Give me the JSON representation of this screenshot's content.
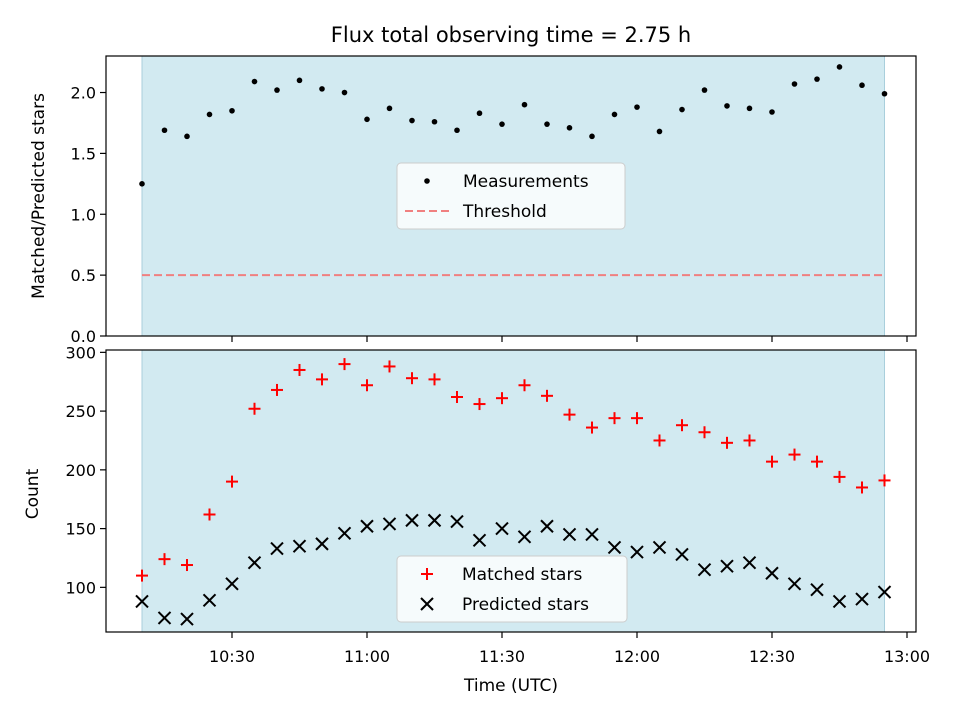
{
  "chart_data": [
    {
      "type": "scatter",
      "title": "Flux total observing time = 2.75 h",
      "ylabel": "Matched/Predicted stars",
      "xlabel": "",
      "ylim": [
        0,
        2.3
      ],
      "yticks": [
        0.0,
        0.5,
        1.0,
        1.5,
        2.0
      ],
      "ytick_labels": [
        "0.0",
        "0.5",
        "1.0",
        "1.5",
        "2.0"
      ],
      "shaded_interval": [
        "10:10",
        "12:55"
      ],
      "shade_color": "#add8e6",
      "legend_position": "center",
      "series": [
        {
          "name": "Measurements",
          "marker": "dot",
          "color": "#000000",
          "x": [
            "10:10",
            "10:15",
            "10:20",
            "10:25",
            "10:30",
            "10:35",
            "10:40",
            "10:45",
            "10:50",
            "10:55",
            "11:00",
            "11:05",
            "11:10",
            "11:15",
            "11:20",
            "11:25",
            "11:30",
            "11:35",
            "11:40",
            "11:45",
            "11:50",
            "11:55",
            "12:00",
            "12:05",
            "12:10",
            "12:15",
            "12:20",
            "12:25",
            "12:30",
            "12:35",
            "12:40",
            "12:45",
            "12:50",
            "12:55"
          ],
          "y": [
            1.25,
            1.69,
            1.64,
            1.82,
            1.85,
            2.09,
            2.02,
            2.1,
            2.03,
            2.0,
            1.78,
            1.87,
            1.77,
            1.76,
            1.69,
            1.83,
            1.74,
            1.9,
            1.74,
            1.71,
            1.64,
            1.82,
            1.88,
            1.68,
            1.86,
            2.02,
            1.89,
            1.87,
            1.84,
            2.07,
            2.11,
            2.21,
            2.06,
            1.99
          ]
        },
        {
          "name": "Threshold",
          "line_style": "dashed",
          "color": "#f08080",
          "x": [
            "10:10",
            "12:55"
          ],
          "y": [
            0.5,
            0.5
          ]
        }
      ]
    },
    {
      "type": "scatter",
      "title": "",
      "ylabel": "Count",
      "xlabel": "Time (UTC)",
      "ylim": [
        62,
        302
      ],
      "yticks": [
        100,
        150,
        200,
        250,
        300
      ],
      "ytick_labels": [
        "100",
        "150",
        "200",
        "250",
        "300"
      ],
      "x_range": [
        "10:02",
        "13:02"
      ],
      "xticks": [
        "10:30",
        "11:00",
        "11:30",
        "12:00",
        "12:30",
        "13:00"
      ],
      "shaded_interval": [
        "10:10",
        "12:55"
      ],
      "shade_color": "#add8e6",
      "legend_position": "lower center",
      "series": [
        {
          "name": "Matched stars",
          "marker": "plus",
          "color": "#ff0000",
          "x": [
            "10:10",
            "10:15",
            "10:20",
            "10:25",
            "10:30",
            "10:35",
            "10:40",
            "10:45",
            "10:50",
            "10:55",
            "11:00",
            "11:05",
            "11:10",
            "11:15",
            "11:20",
            "11:25",
            "11:30",
            "11:35",
            "11:40",
            "11:45",
            "11:50",
            "11:55",
            "12:00",
            "12:05",
            "12:10",
            "12:15",
            "12:20",
            "12:25",
            "12:30",
            "12:35",
            "12:40",
            "12:45",
            "12:50",
            "12:55"
          ],
          "y": [
            110,
            124,
            119,
            162,
            190,
            252,
            268,
            285,
            277,
            290,
            272,
            288,
            278,
            277,
            262,
            256,
            261,
            272,
            263,
            247,
            236,
            244,
            244,
            225,
            238,
            232,
            223,
            225,
            207,
            213,
            207,
            194,
            185,
            191
          ]
        },
        {
          "name": "Predicted stars",
          "marker": "x",
          "color": "#000000",
          "x": [
            "10:10",
            "10:15",
            "10:20",
            "10:25",
            "10:30",
            "10:35",
            "10:40",
            "10:45",
            "10:50",
            "10:55",
            "11:00",
            "11:05",
            "11:10",
            "11:15",
            "11:20",
            "11:25",
            "11:30",
            "11:35",
            "11:40",
            "11:45",
            "11:50",
            "11:55",
            "12:00",
            "12:05",
            "12:10",
            "12:15",
            "12:20",
            "12:25",
            "12:30",
            "12:35",
            "12:40",
            "12:45",
            "12:50",
            "12:55"
          ],
          "y": [
            88,
            74,
            73,
            89,
            103,
            121,
            133,
            135,
            137,
            146,
            152,
            154,
            157,
            157,
            156,
            140,
            150,
            143,
            152,
            145,
            145,
            134,
            130,
            134,
            128,
            115,
            118,
            121,
            112,
            103,
            98,
            88,
            90,
            96
          ]
        }
      ]
    }
  ]
}
